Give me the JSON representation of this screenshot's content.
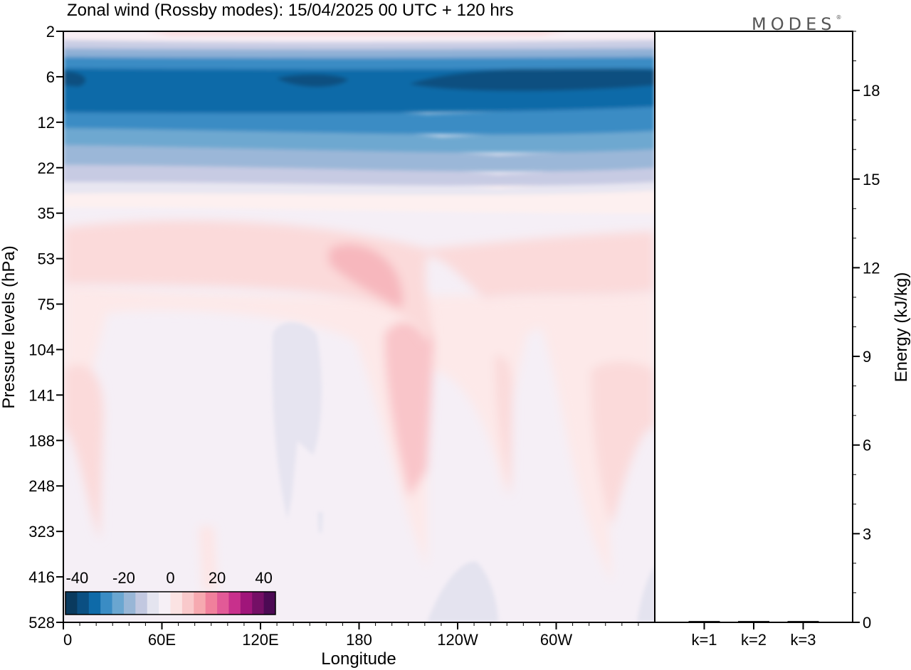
{
  "chart_data": {
    "type": "heatmap",
    "title": "Zonal wind (Rossby modes):  15/04/2025  00 UTC  + 120 hrs",
    "xlabel": "Longitude",
    "ylabel": "Pressure levels (hPa)",
    "y2label": "Energy (kJ/kg)",
    "x_ticks": [
      "0",
      "60E",
      "120E",
      "180",
      "120W",
      "60W"
    ],
    "x_range": [
      0,
      360
    ],
    "y_ticks": [
      "2",
      "6",
      "12",
      "22",
      "35",
      "53",
      "75",
      "104",
      "141",
      "188",
      "248",
      "323",
      "416",
      "528"
    ],
    "y2_ticks": [
      "0",
      "3",
      "6",
      "9",
      "12",
      "15",
      "18"
    ],
    "y2_range": [
      0,
      20
    ],
    "bar_categories": [
      "k=1",
      "k=2",
      "k=3"
    ],
    "bar_values": [
      0.02,
      0.02,
      0.02
    ],
    "colorbar": {
      "tick_labels": [
        "-40",
        "-20",
        "0",
        "20",
        "40"
      ],
      "range": [
        -45,
        45
      ],
      "colors": [
        "#0a3a5e",
        "#0b4f82",
        "#0e6aa8",
        "#3a8cc4",
        "#6aa6d0",
        "#98b6d6",
        "#c2c8e0",
        "#e4e4ef",
        "#f6f0f6",
        "#fbe3e3",
        "#f9c9cb",
        "#f6a9b0",
        "#f0809c",
        "#e25a97",
        "#c8308c",
        "#a0157a",
        "#750f66",
        "#4c0a54"
      ]
    },
    "brand": "MODES",
    "brand_mark": "®",
    "colors": {
      "background": "#ffffff",
      "axis": "#000000"
    }
  }
}
